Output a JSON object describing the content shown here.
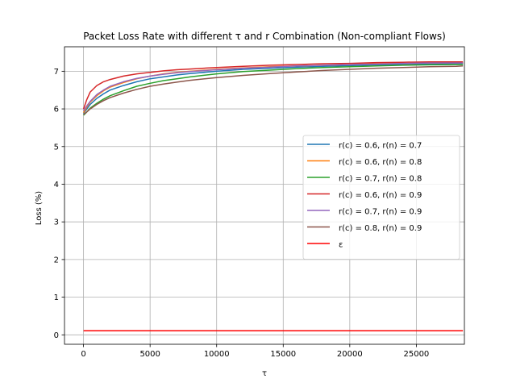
{
  "chart_data": {
    "type": "line",
    "title": "Packet Loss Rate with different τ and r Combination (Non-compliant Flows)",
    "xlabel": "τ",
    "ylabel": "Loss (%)",
    "xlim": [
      -1430,
      28610
    ],
    "ylim": [
      -0.25,
      7.65
    ],
    "xticks": [
      0,
      5000,
      10000,
      15000,
      20000,
      25000
    ],
    "yticks": [
      0,
      1,
      2,
      3,
      4,
      5,
      6,
      7
    ],
    "grid": true,
    "legend_position": "center-right",
    "series": [
      {
        "name": "r(c) = 0.6, r(n) = 0.7",
        "color": "#1f77b4",
        "x": [
          0,
          250,
          500,
          1000,
          1500,
          2000,
          3000,
          4000,
          5000,
          6000,
          7000,
          8000,
          10000,
          12000,
          14000,
          16000,
          18000,
          20000,
          22000,
          24000,
          26000,
          28000,
          28500
        ],
        "y": [
          5.88,
          6.0,
          6.12,
          6.28,
          6.4,
          6.5,
          6.62,
          6.72,
          6.8,
          6.85,
          6.9,
          6.94,
          7.0,
          7.05,
          7.08,
          7.11,
          7.13,
          7.15,
          7.17,
          7.18,
          7.19,
          7.2,
          7.2
        ]
      },
      {
        "name": "r(c) = 0.6, r(n) = 0.8",
        "color": "#ff7f0e",
        "x": [
          0,
          250,
          500,
          1000,
          1500,
          2000,
          3000,
          4000,
          5000,
          6000,
          7000,
          8000,
          10000,
          12000,
          14000,
          16000,
          18000,
          20000,
          22000,
          24000,
          26000,
          28000,
          28500
        ],
        "y": [
          5.9,
          6.05,
          6.18,
          6.35,
          6.48,
          6.58,
          6.7,
          6.8,
          6.87,
          6.93,
          6.97,
          7.0,
          7.05,
          7.09,
          7.12,
          7.14,
          7.16,
          7.18,
          7.2,
          7.21,
          7.22,
          7.23,
          7.23
        ]
      },
      {
        "name": "r(c) = 0.7, r(n) = 0.8",
        "color": "#2ca02c",
        "x": [
          0,
          250,
          500,
          1000,
          1500,
          2000,
          3000,
          4000,
          5000,
          6000,
          7000,
          8000,
          10000,
          12000,
          14000,
          16000,
          18000,
          20000,
          22000,
          24000,
          26000,
          28000,
          28500
        ],
        "y": [
          5.83,
          5.92,
          6.02,
          6.15,
          6.26,
          6.35,
          6.48,
          6.6,
          6.68,
          6.75,
          6.8,
          6.85,
          6.93,
          6.99,
          7.03,
          7.07,
          7.1,
          7.12,
          7.14,
          7.16,
          7.17,
          7.18,
          7.18
        ]
      },
      {
        "name": "r(c) = 0.6, r(n) = 0.9",
        "color": "#d62728",
        "x": [
          0,
          250,
          500,
          1000,
          1500,
          2000,
          3000,
          4000,
          5000,
          6000,
          7000,
          8000,
          10000,
          12000,
          14000,
          16000,
          18000,
          20000,
          22000,
          24000,
          26000,
          28000,
          28500
        ],
        "y": [
          6.0,
          6.25,
          6.45,
          6.62,
          6.72,
          6.78,
          6.87,
          6.93,
          6.97,
          7.01,
          7.04,
          7.06,
          7.1,
          7.13,
          7.16,
          7.18,
          7.2,
          7.21,
          7.23,
          7.24,
          7.25,
          7.25,
          7.25
        ]
      },
      {
        "name": "r(c) = 0.7, r(n) = 0.9",
        "color": "#9467bd",
        "x": [
          0,
          250,
          500,
          1000,
          1500,
          2000,
          3000,
          4000,
          5000,
          6000,
          7000,
          8000,
          10000,
          12000,
          14000,
          16000,
          18000,
          20000,
          22000,
          24000,
          26000,
          28000,
          28500
        ],
        "y": [
          5.95,
          6.08,
          6.2,
          6.38,
          6.5,
          6.6,
          6.72,
          6.81,
          6.87,
          6.92,
          6.96,
          6.99,
          7.04,
          7.08,
          7.11,
          7.14,
          7.16,
          7.18,
          7.19,
          7.21,
          7.22,
          7.22,
          7.22
        ]
      },
      {
        "name": "r(c) = 0.8, r(n) = 0.9",
        "color": "#8c564b",
        "x": [
          0,
          250,
          500,
          1000,
          1500,
          2000,
          3000,
          4000,
          5000,
          6000,
          7000,
          8000,
          10000,
          12000,
          14000,
          16000,
          18000,
          20000,
          22000,
          24000,
          26000,
          28000,
          28500
        ],
        "y": [
          5.85,
          5.92,
          6.0,
          6.12,
          6.22,
          6.3,
          6.42,
          6.52,
          6.6,
          6.66,
          6.71,
          6.76,
          6.83,
          6.89,
          6.94,
          6.98,
          7.02,
          7.05,
          7.08,
          7.1,
          7.12,
          7.13,
          7.14
        ]
      },
      {
        "name": "ε",
        "color": "#ff0000",
        "x": [
          0,
          28500
        ],
        "y": [
          0.11,
          0.11
        ]
      }
    ]
  }
}
